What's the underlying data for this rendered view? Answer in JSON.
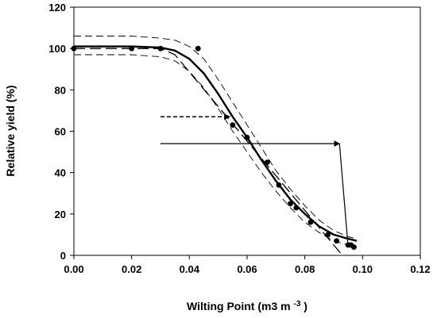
{
  "chart_data": {
    "type": "scatter",
    "title": "",
    "xlabel": "Wilting Point (m3 m",
    "xlabel_superscript": "-3",
    "xlabel_suffix": ")",
    "ylabel": "Relative yield (%)",
    "xlim": [
      0,
      0.12
    ],
    "ylim": [
      0,
      120
    ],
    "x_ticks": [
      "0.00",
      "0.02",
      "0.04",
      "0.06",
      "0.08",
      "0.10",
      "0.12"
    ],
    "y_ticks": [
      "0",
      "20",
      "40",
      "60",
      "80",
      "100",
      "120"
    ],
    "grid": false,
    "legend": "none",
    "series": [
      {
        "kind": "points",
        "x": [
          0.0,
          0.02,
          0.03,
          0.043,
          0.055,
          0.06,
          0.067,
          0.071,
          0.075,
          0.077,
          0.082,
          0.088,
          0.091,
          0.095,
          0.096,
          0.097
        ],
        "y": [
          100,
          100,
          100,
          100,
          63,
          57,
          45,
          34,
          25,
          23,
          16,
          10,
          7,
          5,
          5,
          4
        ]
      },
      {
        "kind": "fitted-curve",
        "style": "thick-solid",
        "x": [
          0.0,
          0.02,
          0.03,
          0.035,
          0.04,
          0.045,
          0.05,
          0.055,
          0.06,
          0.065,
          0.07,
          0.075,
          0.08,
          0.085,
          0.09,
          0.095,
          0.098
        ],
        "y": [
          101,
          101,
          100.5,
          99,
          95,
          88,
          78,
          67,
          57,
          46,
          36,
          27,
          20,
          14,
          10,
          8,
          7
        ]
      },
      {
        "kind": "confidence-band-upper",
        "style": "thin-dashed",
        "x": [
          0.0,
          0.02,
          0.03,
          0.035,
          0.04,
          0.045,
          0.05,
          0.055,
          0.06,
          0.065,
          0.07,
          0.075,
          0.08,
          0.085,
          0.09,
          0.095,
          0.098
        ],
        "y": [
          106,
          106,
          105,
          104,
          101,
          95,
          85,
          74,
          63,
          52,
          41,
          32,
          24,
          17,
          12,
          9,
          8
        ]
      },
      {
        "kind": "confidence-band-lower",
        "style": "thin-dashed",
        "x": [
          0.0,
          0.02,
          0.03,
          0.035,
          0.04,
          0.045,
          0.05,
          0.055,
          0.06,
          0.065,
          0.07,
          0.075,
          0.08,
          0.085,
          0.09,
          0.095,
          0.098
        ],
        "y": [
          97,
          97,
          96,
          94,
          89,
          81,
          71,
          60,
          50,
          40,
          31,
          23,
          16,
          11,
          7,
          5,
          4
        ]
      },
      {
        "kind": "linear-fit",
        "style": "long-dashed",
        "x": [
          0.0,
          0.03,
          0.035,
          0.093
        ],
        "y": [
          100,
          100,
          97,
          0
        ]
      }
    ],
    "annotations": [
      {
        "kind": "arrow",
        "style": "dashed",
        "from": [
          0.03,
          67
        ],
        "to": [
          0.054,
          67
        ]
      },
      {
        "kind": "arrow",
        "style": "solid",
        "from": [
          0.03,
          54
        ],
        "to": [
          0.092,
          54
        ]
      },
      {
        "kind": "line",
        "style": "solid",
        "from": [
          0.092,
          54
        ],
        "to": [
          0.095,
          4
        ]
      }
    ]
  },
  "colors": {
    "ink": "#000000",
    "background": "#ffffff"
  }
}
